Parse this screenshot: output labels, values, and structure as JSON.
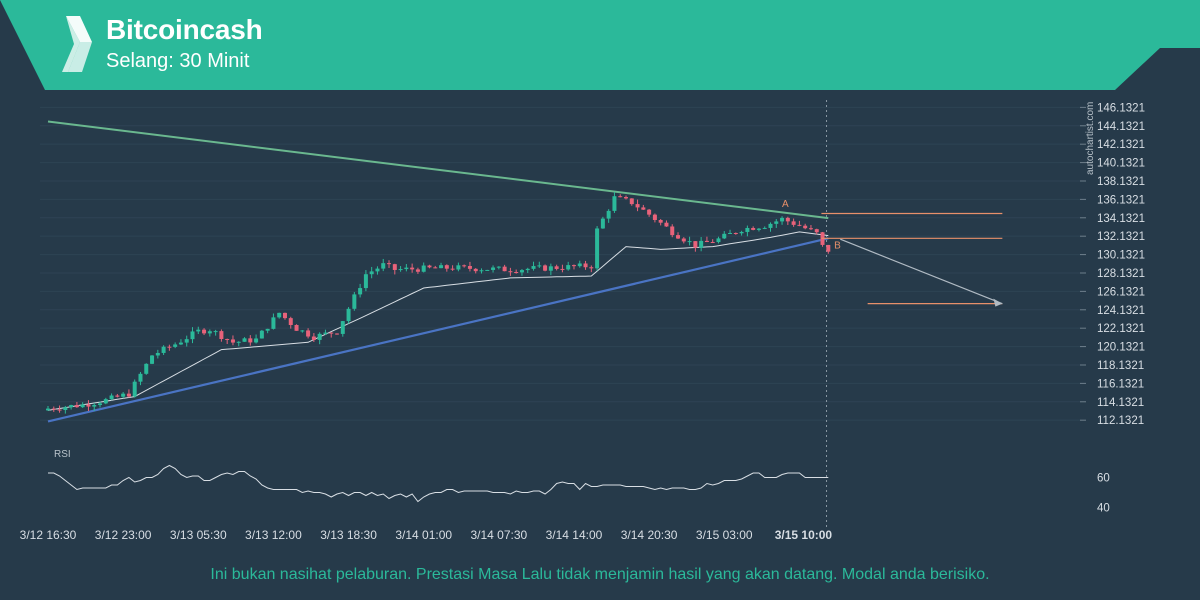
{
  "header": {
    "title": "Bitcoincash",
    "subtitle": "Selang: 30 Minit"
  },
  "disclaimer": "Ini bukan nasihat pelaburan. Prestasi Masa Lalu tidak menjamin hasil yang akan datang. Modal anda berisiko.",
  "watermark": "autochartist.com",
  "colors": {
    "banner": "#2bb99a",
    "background": "#263a4a",
    "up_candle": "#2bb99a",
    "down_candle": "#e8627a",
    "resistance_line": "#6ab88f",
    "support_line": "#4a74c4",
    "level_line": "#e8906a",
    "moving_average": "#d8dee4",
    "projection": "#b0bac3"
  },
  "chart_data": {
    "type": "candlestick",
    "title": "Bitcoincash",
    "subtitle": "Selang: 30 Minit",
    "y_ticks": [
      "146.1321",
      "144.1321",
      "142.1321",
      "140.1321",
      "138.1321",
      "136.1321",
      "134.1321",
      "132.1321",
      "130.1321",
      "128.1321",
      "126.1321",
      "124.1321",
      "122.1321",
      "120.1321",
      "118.1321",
      "116.1321",
      "114.1321",
      "112.1321"
    ],
    "ylim": [
      111.5,
      146.5
    ],
    "x_ticks": [
      "3/12 16:30",
      "3/12 23:00",
      "3/13 05:30",
      "3/13 12:00",
      "3/13 18:30",
      "3/14 01:00",
      "3/14 07:30",
      "3/14 14:00",
      "3/14 20:30",
      "3/15 03:00",
      "3/15 10:00"
    ],
    "x_tick_index": [
      0,
      13,
      26,
      39,
      52,
      65,
      78,
      91,
      104,
      117,
      130
    ],
    "close_anchors": [
      [
        0,
        113.4
      ],
      [
        6,
        113.8
      ],
      [
        10,
        114.3
      ],
      [
        14,
        115.0
      ],
      [
        18,
        119.2
      ],
      [
        22,
        120.4
      ],
      [
        26,
        121.8
      ],
      [
        28,
        122.0
      ],
      [
        32,
        120.6
      ],
      [
        36,
        120.9
      ],
      [
        40,
        123.8
      ],
      [
        43,
        122.1
      ],
      [
        46,
        121.2
      ],
      [
        50,
        121.8
      ],
      [
        55,
        128.0
      ],
      [
        58,
        129.0
      ],
      [
        60,
        128.5
      ],
      [
        70,
        128.7
      ],
      [
        80,
        128.5
      ],
      [
        94,
        128.9
      ],
      [
        95,
        132.8
      ],
      [
        98,
        136.3
      ],
      [
        101,
        135.8
      ],
      [
        104,
        134.5
      ],
      [
        108,
        132.6
      ],
      [
        112,
        131.1
      ],
      [
        116,
        131.8
      ],
      [
        120,
        132.9
      ],
      [
        124,
        133.3
      ],
      [
        127,
        134.0
      ],
      [
        130,
        133.3
      ],
      [
        133,
        132.4
      ],
      [
        134,
        131.0
      ],
      [
        135,
        130.6
      ]
    ],
    "candles_count": 136,
    "moving_average_anchors": [
      [
        0,
        113.2
      ],
      [
        15,
        114.7
      ],
      [
        30,
        119.8
      ],
      [
        45,
        120.6
      ],
      [
        55,
        123.5
      ],
      [
        65,
        126.5
      ],
      [
        80,
        127.6
      ],
      [
        94,
        127.8
      ],
      [
        100,
        131.0
      ],
      [
        106,
        130.7
      ],
      [
        115,
        131.0
      ],
      [
        125,
        132.0
      ],
      [
        130,
        132.6
      ],
      [
        135,
        132.2
      ]
    ],
    "resistance_line": [
      [
        0,
        144.6
      ],
      [
        135,
        134.1
      ]
    ],
    "support_line": [
      [
        0,
        112.0
      ],
      [
        135,
        131.9
      ]
    ],
    "levels": [
      {
        "value": 134.6,
        "x_start": 130,
        "x_end": 162
      },
      {
        "value": 131.9,
        "x_start": 130,
        "x_end": 162
      },
      {
        "value": 124.8,
        "x_start": 138,
        "x_end": 162
      }
    ],
    "point_labels": [
      {
        "label": "A",
        "x": 127,
        "y": 135.3
      },
      {
        "label": "B",
        "x": 136,
        "y": 130.8
      }
    ],
    "projection": [
      [
        135,
        131.8
      ],
      [
        162,
        124.8
      ]
    ],
    "current_x": 134,
    "rsi": {
      "label": "RSI",
      "ticks": [
        "60",
        "40"
      ],
      "tick_values": [
        60,
        40
      ],
      "ylim": [
        33,
        75
      ],
      "values": [
        63,
        63,
        61,
        58,
        55,
        52,
        53,
        53,
        53,
        53,
        53,
        55,
        55,
        58,
        60,
        57,
        58,
        60,
        60,
        62,
        66,
        68,
        66,
        62,
        60,
        61,
        61,
        58,
        58,
        60,
        62,
        63,
        62,
        64,
        64,
        61,
        59,
        55,
        53,
        52,
        52,
        52,
        52,
        52,
        50,
        51,
        50,
        50,
        49,
        47,
        49,
        50,
        48,
        50,
        50,
        48,
        50,
        48,
        49,
        46,
        48,
        49,
        47,
        49,
        44,
        47,
        49,
        50,
        50,
        52,
        52,
        50,
        51,
        51,
        51,
        51,
        51,
        50,
        50,
        50,
        49,
        51,
        50,
        50,
        51,
        51,
        49,
        52,
        56,
        57,
        56,
        56,
        52,
        56,
        54,
        54,
        55,
        55,
        55,
        55,
        54,
        54,
        54,
        54,
        53,
        52,
        53,
        52,
        53,
        53,
        53,
        52,
        52,
        53,
        56,
        55,
        56,
        58,
        58,
        58,
        59,
        61,
        63,
        63,
        60,
        60,
        60,
        62,
        63,
        63,
        63,
        60,
        60,
        60,
        60,
        60
      ]
    }
  }
}
